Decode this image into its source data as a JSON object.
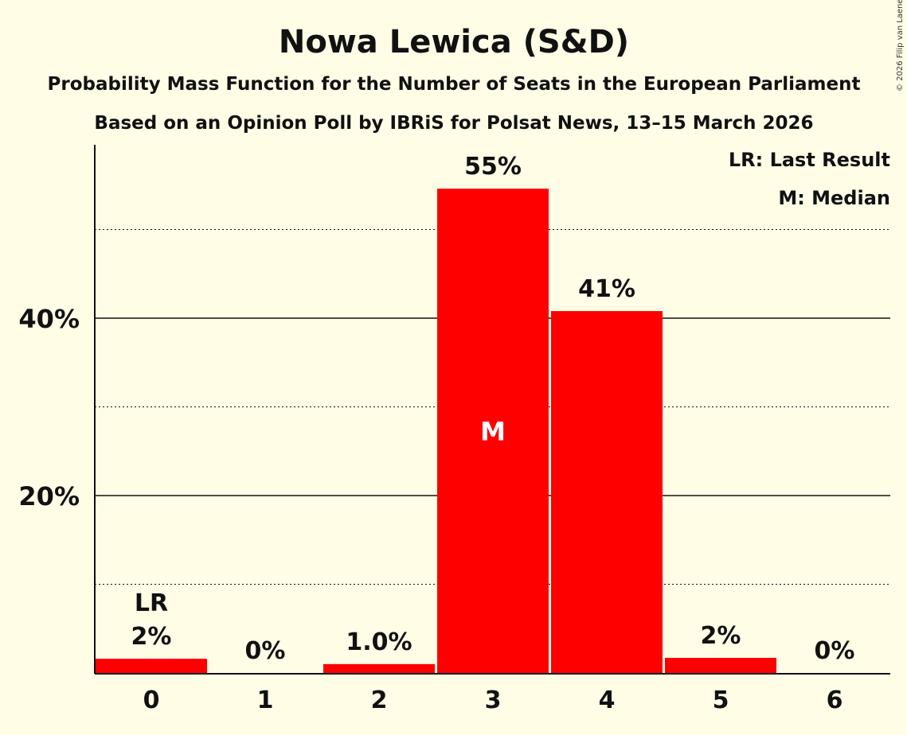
{
  "chart_data": {
    "type": "bar",
    "title": "Nowa Lewica (S&D)",
    "subtitle": "Probability Mass Function for the Number of Seats in the European Parliament",
    "subtitle2": "Based on an Opinion Poll by IBRiS for Polsat News, 13–15 March 2026",
    "copyright": "© 2026 Filip van Laenen",
    "categories": [
      "0",
      "1",
      "2",
      "3",
      "4",
      "5",
      "6"
    ],
    "values": [
      1.6,
      0,
      1.0,
      54.6,
      40.8,
      1.7,
      0
    ],
    "data_labels": [
      "2%",
      "0%",
      "1.0%",
      "55%",
      "41%",
      "2%",
      "0%"
    ],
    "ylim": [
      0,
      58
    ],
    "yticks": [
      {
        "v": 20,
        "label": "20%"
      },
      {
        "v": 40,
        "label": "40%"
      }
    ],
    "minor_gridlines": [
      10,
      30,
      50
    ],
    "last_result_index": 0,
    "median_index": 3,
    "lr_marker": "LR",
    "median_marker": "M",
    "legend": [
      "LR: Last Result",
      "M: Median"
    ],
    "legend_position": "top-right",
    "bar_color": "#ff0000",
    "xlabel": "",
    "ylabel": ""
  }
}
